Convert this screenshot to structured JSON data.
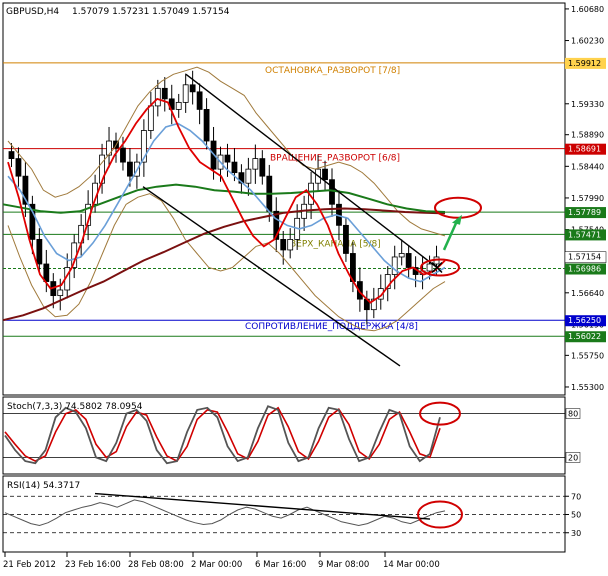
{
  "header": {
    "symbol": "GBPUSD,H4",
    "ohlc": "1.57079 1.57231 1.57049 1.57154"
  },
  "stoch_header": "Stoch(7,3,3) 74.5802 78.0954",
  "rsi_header": "RSI(14) 54.3717",
  "colors": {
    "candle": "#000000",
    "bb": "#a07a3c",
    "ma_fast": "#e00000",
    "ma_mid": "#6a9fd8",
    "ma_green": "#1a7a1a",
    "ma_brown": "#7a1010",
    "channel": "#000000",
    "arrow": "#22b14c",
    "circle": "#d00000",
    "label_orange": "#d08000",
    "label_red": "#cc0000",
    "label_blue": "#0000cc",
    "label_olive": "#808000"
  },
  "chart_data": [
    {
      "type": "line",
      "panel": "price",
      "ylim": [
        1.552,
        1.6075
      ],
      "y_ticks": [
        "1.60680",
        "1.60230",
        "1.59330",
        "1.58890",
        "1.58440",
        "1.57990",
        "1.57540",
        "1.56640",
        "1.56190",
        "1.55750",
        "1.55300"
      ],
      "x_ticks": [
        "21 Feb 2012",
        "23 Feb 16:00",
        "28 Feb 08:00",
        "2 Mar 00:00",
        "6 Mar 16:00",
        "9 Mar 08:00",
        "14 Mar 00:00"
      ],
      "close_approx": [
        1.5855,
        1.583,
        1.579,
        1.574,
        1.5705,
        1.568,
        1.566,
        1.5668,
        1.57,
        1.5735,
        1.576,
        1.579,
        1.582,
        1.586,
        1.588,
        1.587,
        1.585,
        1.583,
        1.585,
        1.5895,
        1.593,
        1.5955,
        1.594,
        1.5925,
        1.5935,
        1.596,
        1.595,
        1.5925,
        1.588,
        1.584,
        1.586,
        1.585,
        1.5835,
        1.582,
        1.584,
        1.5855,
        1.583,
        1.578,
        1.574,
        1.5725,
        1.574,
        1.577,
        1.579,
        1.582,
        1.584,
        1.5825,
        1.579,
        1.576,
        1.572,
        1.568,
        1.5655,
        1.564,
        1.5655,
        1.567,
        1.569,
        1.5715,
        1.572,
        1.57,
        1.569,
        1.5695,
        1.5705,
        1.5715
      ],
      "bollinger_upper_approx": [
        1.588,
        1.586,
        1.584,
        1.581,
        1.58,
        1.5805,
        1.5815,
        1.583,
        1.585,
        1.587,
        1.59,
        1.593,
        1.595,
        1.5965,
        1.5975,
        1.598,
        1.5985,
        1.5978,
        1.5965,
        1.5955,
        1.5945,
        1.592,
        1.59,
        1.588,
        1.586,
        1.5845,
        1.584,
        1.5845,
        1.585,
        1.5845,
        1.5835,
        1.582,
        1.58,
        1.578,
        1.5765,
        1.5755,
        1.575,
        1.5745
      ],
      "bollinger_lower_approx": [
        1.576,
        1.5715,
        1.5675,
        1.5645,
        1.563,
        1.5632,
        1.5648,
        1.568,
        1.572,
        1.576,
        1.579,
        1.58,
        1.5805,
        1.5795,
        1.577,
        1.574,
        1.572,
        1.57,
        1.5695,
        1.57,
        1.5715,
        1.573,
        1.5735,
        1.572,
        1.57,
        1.568,
        1.566,
        1.5645,
        1.563,
        1.562,
        1.5612,
        1.561,
        1.5615,
        1.5625,
        1.564,
        1.5655,
        1.567,
        1.568
      ],
      "ma_fast_approx": [
        1.585,
        1.58,
        1.574,
        1.569,
        1.567,
        1.5675,
        1.57,
        1.574,
        1.579,
        1.583,
        1.586,
        1.588,
        1.5905,
        1.5925,
        1.594,
        1.5935,
        1.59,
        1.587,
        1.585,
        1.584,
        1.583,
        1.58,
        1.577,
        1.5745,
        1.573,
        1.574,
        1.577,
        1.58,
        1.581,
        1.579,
        1.576,
        1.572,
        1.569,
        1.5665,
        1.565,
        1.566,
        1.568,
        1.5695,
        1.57,
        1.569,
        1.5695,
        1.571
      ],
      "ma_mid_approx": [
        1.583,
        1.581,
        1.578,
        1.5745,
        1.572,
        1.571,
        1.5715,
        1.5735,
        1.576,
        1.579,
        1.582,
        1.585,
        1.588,
        1.59,
        1.5905,
        1.5895,
        1.588,
        1.586,
        1.584,
        1.5825,
        1.581,
        1.579,
        1.577,
        1.576,
        1.5755,
        1.576,
        1.577,
        1.5775,
        1.577,
        1.575,
        1.573,
        1.571,
        1.5695,
        1.5685,
        1.568,
        1.569,
        1.57
      ],
      "ma_green_approx": [
        1.579,
        1.5785,
        1.578,
        1.5778,
        1.578,
        1.579,
        1.58,
        1.581,
        1.5815,
        1.5818,
        1.5815,
        1.581,
        1.5808,
        1.5805,
        1.5805,
        1.5806,
        1.5808,
        1.581,
        1.5806,
        1.5798,
        1.579,
        1.5784,
        1.578,
        1.5779
      ],
      "ma_brown_approx": [
        1.5625,
        1.5632,
        1.5642,
        1.5655,
        1.5668,
        1.568,
        1.5695,
        1.571,
        1.5722,
        1.5735,
        1.5748,
        1.5758,
        1.5766,
        1.5772,
        1.5778,
        1.5781,
        1.5783,
        1.5784,
        1.5783,
        1.5781,
        1.5779,
        1.5778,
        1.5777
      ],
      "channel_lines": [
        {
          "x0": "27 Feb 16:00",
          "y0": 1.5975,
          "x1": "12 Mar 08:00",
          "y1": 1.57
        },
        {
          "x0": "24 Feb 20:00",
          "y0": 1.5815,
          "x1": "12 Mar 12:00",
          "y1": 1.556
        }
      ],
      "levels": [
        {
          "label": "ОСТАНОВКА_РАЗВОРОТ [7/8]",
          "value_label": "1.59912",
          "value": 1.59912,
          "color": "#d08000",
          "label_color": "#d08000",
          "box": "#ffd24d"
        },
        {
          "label": "ВРАЩЕНИЕ_РАЗВОРОТ [6/8]",
          "value_label": "1.58691",
          "value": 1.58691,
          "color": "#cc0000",
          "label_color": "#cc0000",
          "box": "#cc0000"
        },
        {
          "label": "",
          "value_label": "1.57789",
          "value": 1.57789,
          "color": "#1a7a1a",
          "label_color": "#1a7a1a",
          "box": "#1a7a1a"
        },
        {
          "label": "ВЕРХ_КАНАЛА [5/8]",
          "value_label": "1.57471",
          "value": 1.57471,
          "color": "#1a7a1a",
          "label_color": "#808000",
          "box": "#1a7a1a"
        },
        {
          "label": "",
          "value_label": "1.56986",
          "value": 1.56986,
          "color": "#1a7a1a",
          "label_color": "#1a7a1a",
          "box": "#1a7a1a"
        },
        {
          "label": "СОПРОТИВЛЕНИЕ_ПОДДЕРЖКА [4/8]",
          "value_label": "1.56250",
          "value": 1.5625,
          "color": "#0000cc",
          "label_color": "#0000cc",
          "box": "#0000cc"
        },
        {
          "label": "",
          "value_label": "1.56022",
          "value": 1.56022,
          "color": "#1a7a1a",
          "label_color": "#1a7a1a",
          "box": "#1a7a1a"
        }
      ],
      "current_price_label": "1.57154",
      "current_price": 1.57154
    },
    {
      "type": "line",
      "panel": "stochastic",
      "ylim": [
        0,
        100
      ],
      "y_ticks": [
        "80",
        "20"
      ],
      "levels": [
        80,
        20
      ],
      "main_approx": [
        50,
        30,
        15,
        12,
        30,
        75,
        88,
        82,
        60,
        20,
        15,
        40,
        80,
        85,
        70,
        30,
        12,
        15,
        55,
        85,
        88,
        75,
        35,
        15,
        20,
        60,
        90,
        85,
        40,
        15,
        20,
        60,
        88,
        85,
        45,
        15,
        20,
        55,
        85,
        80,
        35,
        15,
        25,
        75
      ],
      "signal_approx": [
        55,
        38,
        22,
        15,
        22,
        55,
        80,
        85,
        72,
        38,
        20,
        28,
        62,
        82,
        78,
        48,
        22,
        15,
        35,
        72,
        85,
        82,
        55,
        25,
        18,
        42,
        78,
        88,
        62,
        28,
        18,
        42,
        75,
        86,
        65,
        28,
        18,
        38,
        72,
        82,
        55,
        25,
        20,
        60
      ]
    },
    {
      "type": "line",
      "panel": "rsi",
      "ylim": [
        0,
        100
      ],
      "y_ticks": [
        "70",
        "50",
        "30"
      ],
      "trend_line": {
        "x0": "23 Feb 00:00",
        "y0": 73,
        "x1": "14 Mar 04:00",
        "y1": 45
      },
      "values_approx": [
        52,
        48,
        44,
        40,
        38,
        41,
        46,
        52,
        55,
        58,
        60,
        63,
        61,
        58,
        62,
        66,
        64,
        60,
        56,
        52,
        48,
        44,
        41,
        39,
        40,
        44,
        50,
        55,
        58,
        56,
        52,
        48,
        46,
        50,
        55,
        58,
        54,
        50,
        46,
        42,
        40,
        38,
        40,
        44,
        48,
        46,
        42,
        40,
        44,
        48,
        52,
        54
      ]
    }
  ]
}
